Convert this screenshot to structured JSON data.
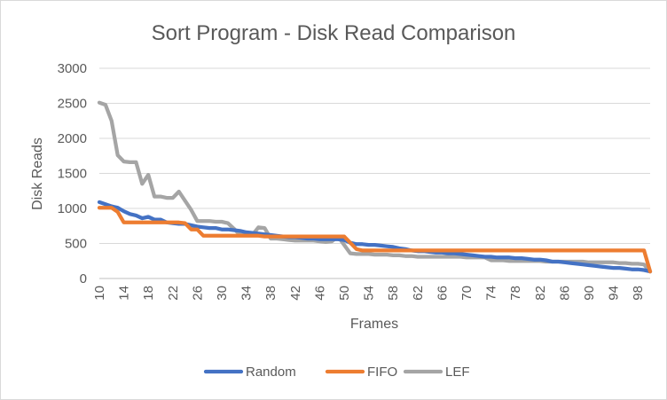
{
  "chart_data": {
    "type": "line",
    "title": "Sort Program - Disk Read Comparison",
    "xlabel": "Frames",
    "ylabel": "Disk Reads",
    "x_range": [
      10,
      100
    ],
    "x_tick_labels": [
      "10",
      "14",
      "18",
      "22",
      "26",
      "30",
      "34",
      "38",
      "42",
      "46",
      "50",
      "54",
      "58",
      "62",
      "66",
      "70",
      "74",
      "78",
      "82",
      "86",
      "90",
      "94",
      "98"
    ],
    "y_tick_labels": [
      "0",
      "500",
      "1000",
      "1500",
      "2000",
      "2500",
      "3000"
    ],
    "ylim": [
      0,
      3000
    ],
    "grid": "horizontal",
    "legend_position": "bottom",
    "series": [
      {
        "name": "Random",
        "color": "#4472c4",
        "points": [
          [
            10,
            1090
          ],
          [
            11,
            1060
          ],
          [
            12,
            1030
          ],
          [
            13,
            1010
          ],
          [
            14,
            960
          ],
          [
            15,
            920
          ],
          [
            16,
            900
          ],
          [
            17,
            860
          ],
          [
            18,
            880
          ],
          [
            19,
            840
          ],
          [
            20,
            840
          ],
          [
            21,
            800
          ],
          [
            22,
            790
          ],
          [
            23,
            780
          ],
          [
            24,
            780
          ],
          [
            25,
            760
          ],
          [
            26,
            740
          ],
          [
            27,
            730
          ],
          [
            28,
            720
          ],
          [
            29,
            720
          ],
          [
            30,
            700
          ],
          [
            31,
            700
          ],
          [
            32,
            690
          ],
          [
            33,
            680
          ],
          [
            34,
            660
          ],
          [
            35,
            650
          ],
          [
            36,
            640
          ],
          [
            37,
            630
          ],
          [
            38,
            620
          ],
          [
            39,
            610
          ],
          [
            40,
            600
          ],
          [
            41,
            590
          ],
          [
            42,
            590
          ],
          [
            43,
            580
          ],
          [
            44,
            570
          ],
          [
            45,
            570
          ],
          [
            46,
            560
          ],
          [
            47,
            560
          ],
          [
            48,
            560
          ],
          [
            49,
            560
          ],
          [
            50,
            550
          ],
          [
            51,
            510
          ],
          [
            52,
            490
          ],
          [
            53,
            490
          ],
          [
            54,
            480
          ],
          [
            55,
            480
          ],
          [
            56,
            470
          ],
          [
            57,
            460
          ],
          [
            58,
            450
          ],
          [
            59,
            430
          ],
          [
            60,
            420
          ],
          [
            61,
            400
          ],
          [
            62,
            390
          ],
          [
            63,
            390
          ],
          [
            64,
            380
          ],
          [
            65,
            370
          ],
          [
            66,
            370
          ],
          [
            67,
            360
          ],
          [
            68,
            360
          ],
          [
            69,
            350
          ],
          [
            70,
            340
          ],
          [
            71,
            330
          ],
          [
            72,
            320
          ],
          [
            73,
            310
          ],
          [
            74,
            310
          ],
          [
            75,
            300
          ],
          [
            76,
            300
          ],
          [
            77,
            300
          ],
          [
            78,
            290
          ],
          [
            79,
            290
          ],
          [
            80,
            280
          ],
          [
            81,
            270
          ],
          [
            82,
            270
          ],
          [
            83,
            260
          ],
          [
            84,
            240
          ],
          [
            85,
            240
          ],
          [
            86,
            230
          ],
          [
            87,
            220
          ],
          [
            88,
            210
          ],
          [
            89,
            200
          ],
          [
            90,
            190
          ],
          [
            91,
            180
          ],
          [
            92,
            170
          ],
          [
            93,
            160
          ],
          [
            94,
            150
          ],
          [
            95,
            150
          ],
          [
            96,
            140
          ],
          [
            97,
            130
          ],
          [
            98,
            130
          ],
          [
            99,
            120
          ],
          [
            100,
            100
          ]
        ]
      },
      {
        "name": "FIFO",
        "color": "#ed7d31",
        "points": [
          [
            10,
            1010
          ],
          [
            12,
            1010
          ],
          [
            13,
            950
          ],
          [
            14,
            800
          ],
          [
            23,
            800
          ],
          [
            24,
            790
          ],
          [
            25,
            700
          ],
          [
            26,
            700
          ],
          [
            27,
            610
          ],
          [
            36,
            610
          ],
          [
            37,
            600
          ],
          [
            50,
            600
          ],
          [
            51,
            510
          ],
          [
            52,
            420
          ],
          [
            53,
            400
          ],
          [
            99,
            400
          ],
          [
            100,
            100
          ]
        ]
      },
      {
        "name": "LEF",
        "color": "#a5a5a5",
        "points": [
          [
            10,
            2510
          ],
          [
            11,
            2480
          ],
          [
            12,
            2250
          ],
          [
            13,
            1760
          ],
          [
            14,
            1670
          ],
          [
            15,
            1660
          ],
          [
            16,
            1660
          ],
          [
            17,
            1350
          ],
          [
            18,
            1480
          ],
          [
            19,
            1170
          ],
          [
            20,
            1170
          ],
          [
            21,
            1150
          ],
          [
            22,
            1150
          ],
          [
            23,
            1240
          ],
          [
            24,
            1110
          ],
          [
            25,
            980
          ],
          [
            26,
            820
          ],
          [
            27,
            820
          ],
          [
            28,
            820
          ],
          [
            29,
            810
          ],
          [
            30,
            810
          ],
          [
            31,
            790
          ],
          [
            32,
            710
          ],
          [
            33,
            620
          ],
          [
            34,
            620
          ],
          [
            35,
            620
          ],
          [
            36,
            730
          ],
          [
            37,
            720
          ],
          [
            38,
            570
          ],
          [
            39,
            570
          ],
          [
            40,
            560
          ],
          [
            41,
            550
          ],
          [
            42,
            540
          ],
          [
            43,
            540
          ],
          [
            44,
            540
          ],
          [
            45,
            540
          ],
          [
            46,
            530
          ],
          [
            47,
            520
          ],
          [
            48,
            530
          ],
          [
            49,
            600
          ],
          [
            50,
            480
          ],
          [
            51,
            360
          ],
          [
            52,
            350
          ],
          [
            53,
            350
          ],
          [
            54,
            350
          ],
          [
            55,
            340
          ],
          [
            56,
            340
          ],
          [
            57,
            340
          ],
          [
            58,
            330
          ],
          [
            59,
            330
          ],
          [
            60,
            320
          ],
          [
            61,
            320
          ],
          [
            62,
            310
          ],
          [
            63,
            310
          ],
          [
            64,
            310
          ],
          [
            65,
            310
          ],
          [
            66,
            310
          ],
          [
            67,
            310
          ],
          [
            68,
            310
          ],
          [
            69,
            310
          ],
          [
            70,
            300
          ],
          [
            71,
            300
          ],
          [
            72,
            300
          ],
          [
            73,
            300
          ],
          [
            74,
            260
          ],
          [
            75,
            260
          ],
          [
            76,
            260
          ],
          [
            77,
            250
          ],
          [
            78,
            250
          ],
          [
            79,
            250
          ],
          [
            80,
            250
          ],
          [
            81,
            250
          ],
          [
            82,
            250
          ],
          [
            83,
            240
          ],
          [
            84,
            240
          ],
          [
            85,
            240
          ],
          [
            86,
            240
          ],
          [
            87,
            240
          ],
          [
            88,
            240
          ],
          [
            89,
            240
          ],
          [
            90,
            230
          ],
          [
            91,
            230
          ],
          [
            92,
            230
          ],
          [
            93,
            230
          ],
          [
            94,
            230
          ],
          [
            95,
            220
          ],
          [
            96,
            220
          ],
          [
            97,
            210
          ],
          [
            98,
            210
          ],
          [
            99,
            200
          ],
          [
            100,
            100
          ]
        ]
      }
    ]
  }
}
